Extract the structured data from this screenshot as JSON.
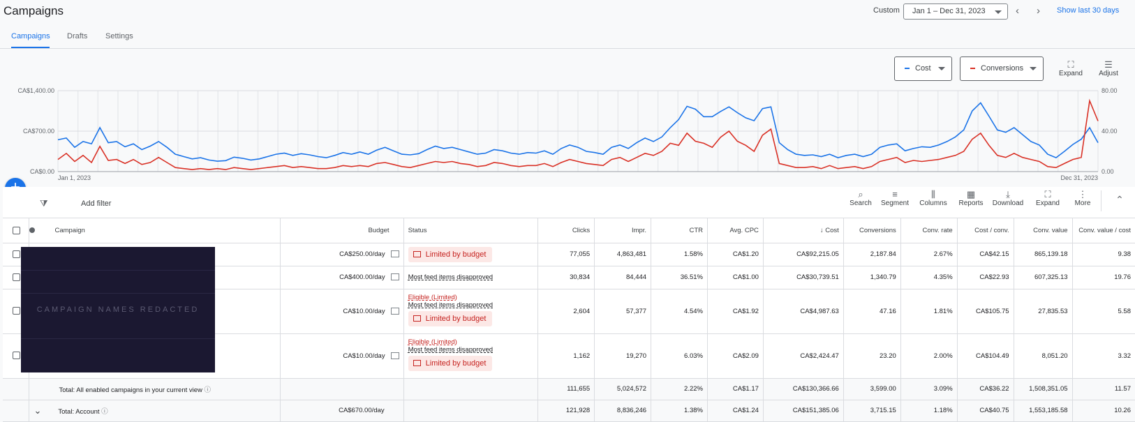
{
  "header": {
    "title": "Campaigns",
    "custom_label": "Custom",
    "date_range": "Jan 1 – Dec 31, 2023",
    "prev_icon": "chevron-left-icon",
    "next_icon": "chevron-right-icon",
    "show_last": "Show last 30 days"
  },
  "tabs": [
    {
      "label": "Campaigns",
      "active": true
    },
    {
      "label": "Drafts",
      "active": false
    },
    {
      "label": "Settings",
      "active": false
    }
  ],
  "chart_controls": {
    "metric1": {
      "label": "Cost",
      "color": "#1a73e8"
    },
    "metric2": {
      "label": "Conversions",
      "color": "#d93025"
    },
    "expand_label": "Expand",
    "adjust_label": "Adjust"
  },
  "chart_data": {
    "type": "line",
    "x_start_label": "Jan 1, 2023",
    "x_end_label": "Dec 31, 2023",
    "y_left_ticks": [
      "CA$1,400.00",
      "CA$700.00",
      "CA$0.00"
    ],
    "y_left_range": [
      0,
      1400
    ],
    "y_right_ticks": [
      "80.00",
      "40.00",
      "0.00"
    ],
    "y_right_range": [
      0,
      80
    ],
    "series": [
      {
        "name": "Cost",
        "color": "#1a73e8",
        "axis": "left",
        "values": [
          550,
          580,
          420,
          520,
          480,
          760,
          500,
          520,
          430,
          480,
          380,
          440,
          520,
          420,
          300,
          260,
          220,
          240,
          200,
          180,
          190,
          250,
          230,
          200,
          220,
          260,
          300,
          320,
          280,
          310,
          290,
          260,
          240,
          280,
          330,
          300,
          340,
          300,
          370,
          420,
          360,
          300,
          290,
          310,
          380,
          440,
          400,
          420,
          380,
          340,
          300,
          320,
          380,
          360,
          320,
          300,
          330,
          320,
          360,
          300,
          400,
          460,
          420,
          350,
          330,
          300,
          420,
          460,
          400,
          500,
          580,
          520,
          600,
          760,
          900,
          1130,
          1080,
          950,
          950,
          1040,
          1120,
          1020,
          930,
          880,
          1090,
          1120,
          500,
          380,
          300,
          280,
          290,
          260,
          300,
          240,
          280,
          300,
          260,
          300,
          420,
          460,
          480,
          360,
          400,
          430,
          420,
          460,
          520,
          600,
          720,
          1050,
          1190,
          960,
          720,
          680,
          760,
          640,
          520,
          460,
          300,
          240,
          350,
          470,
          560,
          760,
          500
        ]
      },
      {
        "name": "Conversions",
        "color": "#d93025",
        "axis": "right",
        "values": [
          12,
          18,
          10,
          16,
          9,
          25,
          11,
          12,
          8,
          12,
          7,
          9,
          14,
          9,
          4,
          3,
          2,
          3,
          2,
          3,
          2,
          4,
          3,
          2,
          3,
          4,
          5,
          6,
          4,
          5,
          4,
          3,
          3,
          4,
          6,
          5,
          6,
          5,
          8,
          9,
          7,
          5,
          4,
          6,
          8,
          10,
          9,
          10,
          8,
          7,
          5,
          6,
          9,
          8,
          6,
          5,
          6,
          6,
          8,
          5,
          9,
          12,
          10,
          8,
          7,
          6,
          12,
          14,
          10,
          14,
          18,
          16,
          20,
          28,
          26,
          38,
          30,
          28,
          24,
          34,
          40,
          30,
          26,
          20,
          36,
          42,
          8,
          6,
          4,
          4,
          5,
          3,
          6,
          3,
          4,
          5,
          3,
          5,
          10,
          12,
          14,
          9,
          11,
          10,
          11,
          12,
          14,
          16,
          20,
          32,
          38,
          26,
          16,
          14,
          18,
          14,
          12,
          10,
          5,
          4,
          8,
          12,
          14,
          70,
          50
        ]
      }
    ]
  },
  "toolbar": {
    "add_filter": "Add filter",
    "tools": [
      {
        "label": "Search",
        "icon": "search-icon"
      },
      {
        "label": "Segment",
        "icon": "segment-icon"
      },
      {
        "label": "Columns",
        "icon": "columns-icon"
      },
      {
        "label": "Reports",
        "icon": "reports-icon"
      },
      {
        "label": "Download",
        "icon": "download-icon"
      },
      {
        "label": "Expand",
        "icon": "expand-icon"
      },
      {
        "label": "More",
        "icon": "more-icon"
      }
    ]
  },
  "table": {
    "headers": {
      "campaign": "Campaign",
      "budget": "Budget",
      "status": "Status",
      "clicks": "Clicks",
      "impr": "Impr.",
      "ctr": "CTR",
      "avg_cpc": "Avg. CPC",
      "cost": "Cost",
      "conversions": "Conversions",
      "conv_rate": "Conv. rate",
      "cost_conv": "Cost / conv.",
      "conv_value": "Conv. value",
      "conv_value_cost": "Conv. value / cost"
    },
    "redaction_label": "CAMPAIGN NAMES REDACTED",
    "rows": [
      {
        "budget": "CA$250.00/day",
        "eligible": "",
        "feed": "",
        "limited": "Limited by budget",
        "clicks": "77,055",
        "impr": "4,863,481",
        "ctr": "1.58%",
        "avg_cpc": "CA$1.20",
        "cost": "CA$92,215.05",
        "conversions": "2,187.84",
        "conv_rate": "2.67%",
        "cost_conv": "CA$42.15",
        "conv_value": "865,139.18",
        "conv_value_cost": "9.38"
      },
      {
        "budget": "CA$400.00/day",
        "eligible": "",
        "feed": "Most feed items disapproved",
        "limited": "",
        "clicks": "30,834",
        "impr": "84,444",
        "ctr": "36.51%",
        "avg_cpc": "CA$1.00",
        "cost": "CA$30,739.51",
        "conversions": "1,340.79",
        "conv_rate": "4.35%",
        "cost_conv": "CA$22.93",
        "conv_value": "607,325.13",
        "conv_value_cost": "19.76"
      },
      {
        "budget": "CA$10.00/day",
        "eligible": "Eligible (Limited)",
        "feed": "Most feed items disapproved",
        "limited": "Limited by budget",
        "clicks": "2,604",
        "impr": "57,377",
        "ctr": "4.54%",
        "avg_cpc": "CA$1.92",
        "cost": "CA$4,987.63",
        "conversions": "47.16",
        "conv_rate": "1.81%",
        "cost_conv": "CA$105.75",
        "conv_value": "27,835.53",
        "conv_value_cost": "5.58"
      },
      {
        "budget": "CA$10.00/day",
        "eligible": "Eligible (Limited)",
        "feed": "Most feed items disapproved",
        "limited": "Limited by budget",
        "clicks": "1,162",
        "impr": "19,270",
        "ctr": "6.03%",
        "avg_cpc": "CA$2.09",
        "cost": "CA$2,424.47",
        "conversions": "23.20",
        "conv_rate": "2.00%",
        "cost_conv": "CA$104.49",
        "conv_value": "8,051.20",
        "conv_value_cost": "3.32"
      }
    ],
    "total_enabled": {
      "label": "Total: All enabled campaigns in your current view",
      "clicks": "111,655",
      "impr": "5,024,572",
      "ctr": "2.22%",
      "avg_cpc": "CA$1.17",
      "cost": "CA$130,366.66",
      "conversions": "3,599.00",
      "conv_rate": "3.09%",
      "cost_conv": "CA$36.22",
      "conv_value": "1,508,351.05",
      "conv_value_cost": "11.57"
    },
    "total_account": {
      "label": "Total: Account",
      "budget": "CA$670.00/day",
      "clicks": "121,928",
      "impr": "8,836,246",
      "ctr": "1.38%",
      "avg_cpc": "CA$1.24",
      "cost": "CA$151,385.06",
      "conversions": "3,715.15",
      "conv_rate": "1.18%",
      "cost_conv": "CA$40.75",
      "conv_value": "1,553,185.58",
      "conv_value_cost": "10.26"
    }
  }
}
